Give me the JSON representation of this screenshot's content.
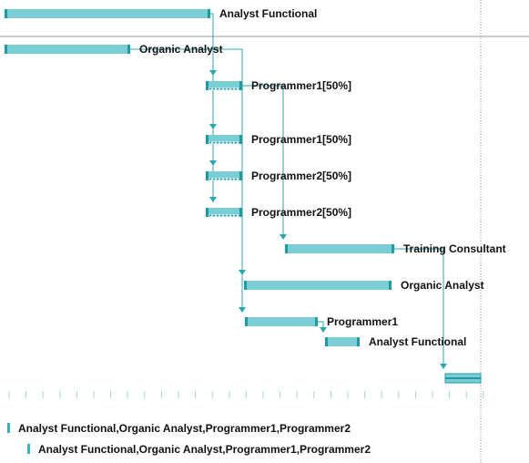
{
  "colors": {
    "bar_fill": "#79ced4",
    "bar_edge": "#1f9aa3",
    "connector": "#2aa8b0",
    "tick": "#9fd3d8",
    "divider": "#9a9a9a",
    "today_line": "#8a8a8a"
  },
  "tasks": [
    {
      "id": "t1",
      "label": "Analyst Functional",
      "style": "solid"
    },
    {
      "id": "t2",
      "label": "Organic Analyst",
      "style": "solid"
    },
    {
      "id": "t3",
      "label": "Programmer1[50%]",
      "style": "partial"
    },
    {
      "id": "t4",
      "label": "Programmer1[50%]",
      "style": "partial"
    },
    {
      "id": "t5",
      "label": "Programmer2[50%]",
      "style": "partial"
    },
    {
      "id": "t6",
      "label": "Programmer2[50%]",
      "style": "partial"
    },
    {
      "id": "t7",
      "label": "Training Consultant",
      "style": "solid"
    },
    {
      "id": "t8",
      "label": "Organic Analyst",
      "style": "solid"
    },
    {
      "id": "t9",
      "label": "Programmer1",
      "style": "solid"
    },
    {
      "id": "t10",
      "label": "Analyst Functional",
      "style": "solid"
    },
    {
      "id": "t11",
      "label": "",
      "style": "milestone"
    }
  ],
  "resources_row": [
    "Analyst Functional,Organic Analyst,Programmer1,Programmer2",
    "Analyst Functional,Organic Analyst,Programmer1,Programmer2"
  ]
}
